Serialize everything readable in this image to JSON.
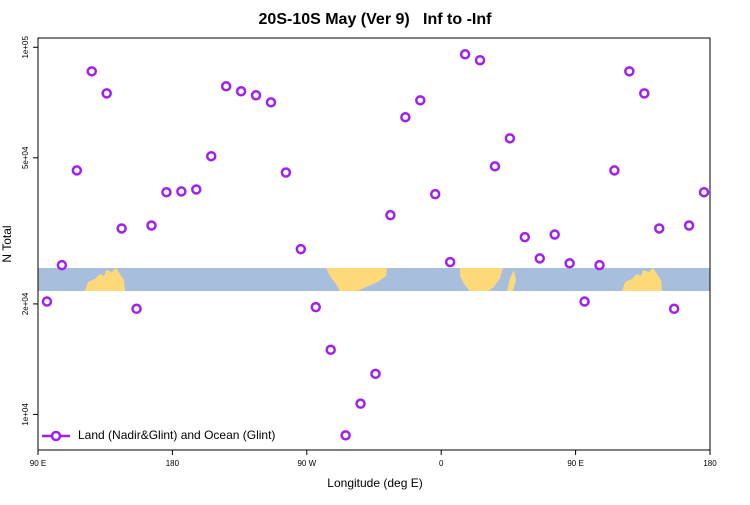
{
  "chart_data": {
    "type": "scatter",
    "title": "20S-10S May (Ver 9)   Inf to -Inf",
    "xlabel": "Longitude (deg E)",
    "ylabel": "N Total",
    "x": [
      96,
      106,
      116,
      126,
      136,
      146,
      156,
      166,
      176,
      186,
      196,
      206,
      216,
      226,
      236,
      246,
      256,
      266,
      276,
      286,
      296,
      306,
      316,
      326,
      336,
      346,
      356,
      366,
      376,
      386,
      396,
      406,
      416,
      426,
      436,
      446,
      456,
      466,
      476,
      486,
      496,
      506,
      516,
      526,
      536
    ],
    "series": [
      {
        "name": "Land (Nadir&Glint) and Ocean (Glint)",
        "color": "#a020f0",
        "values": [
          20300,
          25500,
          46200,
          86000,
          74900,
          32100,
          19400,
          32700,
          40300,
          40500,
          41000,
          50500,
          78300,
          75900,
          74000,
          70800,
          45600,
          28200,
          19600,
          15000,
          8770,
          10700,
          12900,
          34900,
          64500,
          71700,
          39800,
          26000,
          95700,
          92200,
          47400,
          56500,
          30400,
          26600,
          30900,
          25800,
          20300,
          25500,
          46200,
          86000,
          74900,
          32100,
          19400,
          32700,
          40300
        ]
      }
    ],
    "xlim": [
      90,
      540
    ],
    "xticks": [
      {
        "value": 90,
        "label": "90 E"
      },
      180,
      {
        "value": 270,
        "label": "90 W"
      },
      {
        "value": 360,
        "label": "0"
      },
      {
        "value": 450,
        "label": "90 E"
      },
      {
        "value": 540,
        "label": "180"
      }
    ],
    "ylim": [
      8000,
      106000
    ],
    "yticks": [
      {
        "value": 100000,
        "label": "1e+05"
      },
      {
        "value": 50000,
        "label": "5e+04"
      },
      {
        "value": 20000,
        "label": "2e+04"
      },
      {
        "value": 10000,
        "label": "1e+04"
      }
    ],
    "ylog": true,
    "legend": "bottom-left"
  }
}
